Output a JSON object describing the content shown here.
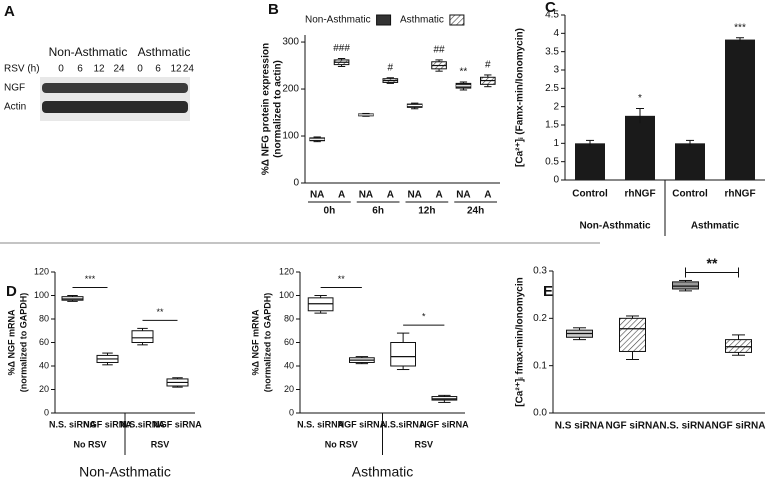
{
  "blot": {
    "panel_label": "A",
    "groups": [
      "Non-Asthmatic",
      "Asthmatic"
    ],
    "axis_label": "RSV (h)",
    "lanes": [
      "0",
      "6",
      "12",
      "24",
      "0",
      "6",
      "12",
      "24"
    ],
    "rows": [
      "NGF",
      "Actin"
    ]
  },
  "chart_data": [
    {
      "type": "box",
      "panel_label": "B",
      "ylabel": [
        "%Δ NFG protein expression",
        "(normalized to actin)"
      ],
      "categories": [
        "NA",
        "A",
        "NA",
        "A",
        "NA",
        "A",
        "NA",
        "A"
      ],
      "groups": [
        "0h",
        "6h",
        "12h",
        "24h"
      ],
      "legend": [
        {
          "name": "Non-Asthmatic",
          "fill": "#333"
        },
        {
          "name": "Asthmatic",
          "fill": "hatch"
        }
      ],
      "fills": [
        "#333",
        "hatch",
        "#333",
        "hatch",
        "#333",
        "hatch",
        "#333",
        "hatch"
      ],
      "boxes": [
        {
          "min": 88,
          "q1": 90,
          "median": 93,
          "q3": 96,
          "max": 98
        },
        {
          "min": 248,
          "q1": 252,
          "median": 257,
          "q3": 262,
          "max": 265
        },
        {
          "min": 142,
          "q1": 143,
          "median": 145,
          "q3": 147,
          "max": 148
        },
        {
          "min": 212,
          "q1": 214,
          "median": 218,
          "q3": 222,
          "max": 224
        },
        {
          "min": 158,
          "q1": 161,
          "median": 165,
          "q3": 168,
          "max": 170
        },
        {
          "min": 238,
          "q1": 243,
          "median": 250,
          "q3": 258,
          "max": 262
        },
        {
          "min": 198,
          "q1": 202,
          "median": 207,
          "q3": 212,
          "max": 215
        },
        {
          "min": 205,
          "q1": 210,
          "median": 218,
          "q3": 225,
          "max": 230
        }
      ],
      "annotations": [
        "###",
        "#",
        "##",
        "**",
        "#"
      ],
      "ylim": [
        0,
        315
      ],
      "yticks": [
        0,
        100,
        200,
        300
      ]
    },
    {
      "type": "bar",
      "panel_label": "C",
      "ylabel": [
        "[Ca²⁺]ᵢ (Famx-min/Ionomycin)"
      ],
      "categories": [
        "Control",
        "rhNGF",
        "Control",
        "rhNGF"
      ],
      "groups": [
        "Non-Asthmatic",
        "Asthmatic"
      ],
      "values": [
        1.0,
        1.75,
        1.0,
        3.83
      ],
      "errors": [
        0.08,
        0.2,
        0.08,
        0.05
      ],
      "color": "#1a1a1a",
      "annotations": [
        "*",
        "***"
      ],
      "ylim": [
        0,
        4.5
      ],
      "yticks": [
        0,
        0.5,
        1,
        1.5,
        2,
        2.5,
        3,
        3.5,
        4,
        4.5
      ]
    },
    {
      "type": "box",
      "panel_label": "D",
      "subtitle": "Non-Asthmatic",
      "ylabel": [
        "%Δ NGF mRNA",
        "(normalized to GAPDH)"
      ],
      "categories": [
        "N.S. siRNA",
        "NGF siRNA",
        "N.S.siRNA",
        "NGF siRNA"
      ],
      "groups": [
        "No RSV",
        "RSV"
      ],
      "fills": [
        "#fff",
        "#fff",
        "#fff",
        "#fff"
      ],
      "boxes": [
        {
          "min": 95,
          "q1": 96,
          "median": 97,
          "q3": 99,
          "max": 100
        },
        {
          "min": 41,
          "q1": 43,
          "median": 46,
          "q3": 49,
          "max": 51
        },
        {
          "min": 58,
          "q1": 60,
          "median": 64,
          "q3": 70,
          "max": 72
        },
        {
          "min": 22,
          "q1": 23,
          "median": 26,
          "q3": 29,
          "max": 30
        }
      ],
      "annotations": [
        "***",
        "**"
      ],
      "ylim": [
        0,
        120
      ],
      "yticks": [
        0,
        20,
        40,
        60,
        80,
        100,
        120
      ]
    },
    {
      "type": "box",
      "subtitle": "Asthmatic",
      "ylabel": [
        "%Δ NGF mRNA",
        "(normalized to GAPDH)"
      ],
      "categories": [
        "N.S. siRNA",
        "NGF siRNA",
        "N.S.siRNA",
        "NGF siRNA"
      ],
      "groups": [
        "No RSV",
        "RSV"
      ],
      "fills": [
        "#fff",
        "#fff",
        "#fff",
        "#fff"
      ],
      "boxes": [
        {
          "min": 85,
          "q1": 87,
          "median": 93,
          "q3": 98,
          "max": 100
        },
        {
          "min": 42,
          "q1": 43,
          "median": 45,
          "q3": 47,
          "max": 48
        },
        {
          "min": 37,
          "q1": 40,
          "median": 48,
          "q3": 60,
          "max": 68
        },
        {
          "min": 9,
          "q1": 11,
          "median": 12,
          "q3": 14,
          "max": 15
        }
      ],
      "annotations": [
        "**",
        "*"
      ],
      "ylim": [
        0,
        120
      ],
      "yticks": [
        0,
        20,
        40,
        60,
        80,
        100,
        120
      ]
    },
    {
      "type": "box",
      "panel_label": "E",
      "ylabel": [
        "[Ca²⁺]ᵢ fmax-min/Ionomycin"
      ],
      "categories": [
        "N.S siRNA",
        "NGF siRNA",
        "N.S. siRNA",
        "NGF siRNA"
      ],
      "fills": [
        "#ccc",
        "hatch",
        "#999",
        "hatch"
      ],
      "boxes": [
        {
          "min": 0.155,
          "q1": 0.16,
          "median": 0.168,
          "q3": 0.175,
          "max": 0.18
        },
        {
          "min": 0.113,
          "q1": 0.13,
          "median": 0.178,
          "q3": 0.2,
          "max": 0.205
        },
        {
          "min": 0.258,
          "q1": 0.262,
          "median": 0.268,
          "q3": 0.277,
          "max": 0.28
        },
        {
          "min": 0.122,
          "q1": 0.128,
          "median": 0.14,
          "q3": 0.155,
          "max": 0.165
        }
      ],
      "annotations": [
        "**"
      ],
      "ylim": [
        0,
        0.3
      ],
      "yticks": [
        {
          "value": 0,
          "label": "0.0"
        },
        0.1,
        0.2,
        0.3
      ]
    }
  ]
}
